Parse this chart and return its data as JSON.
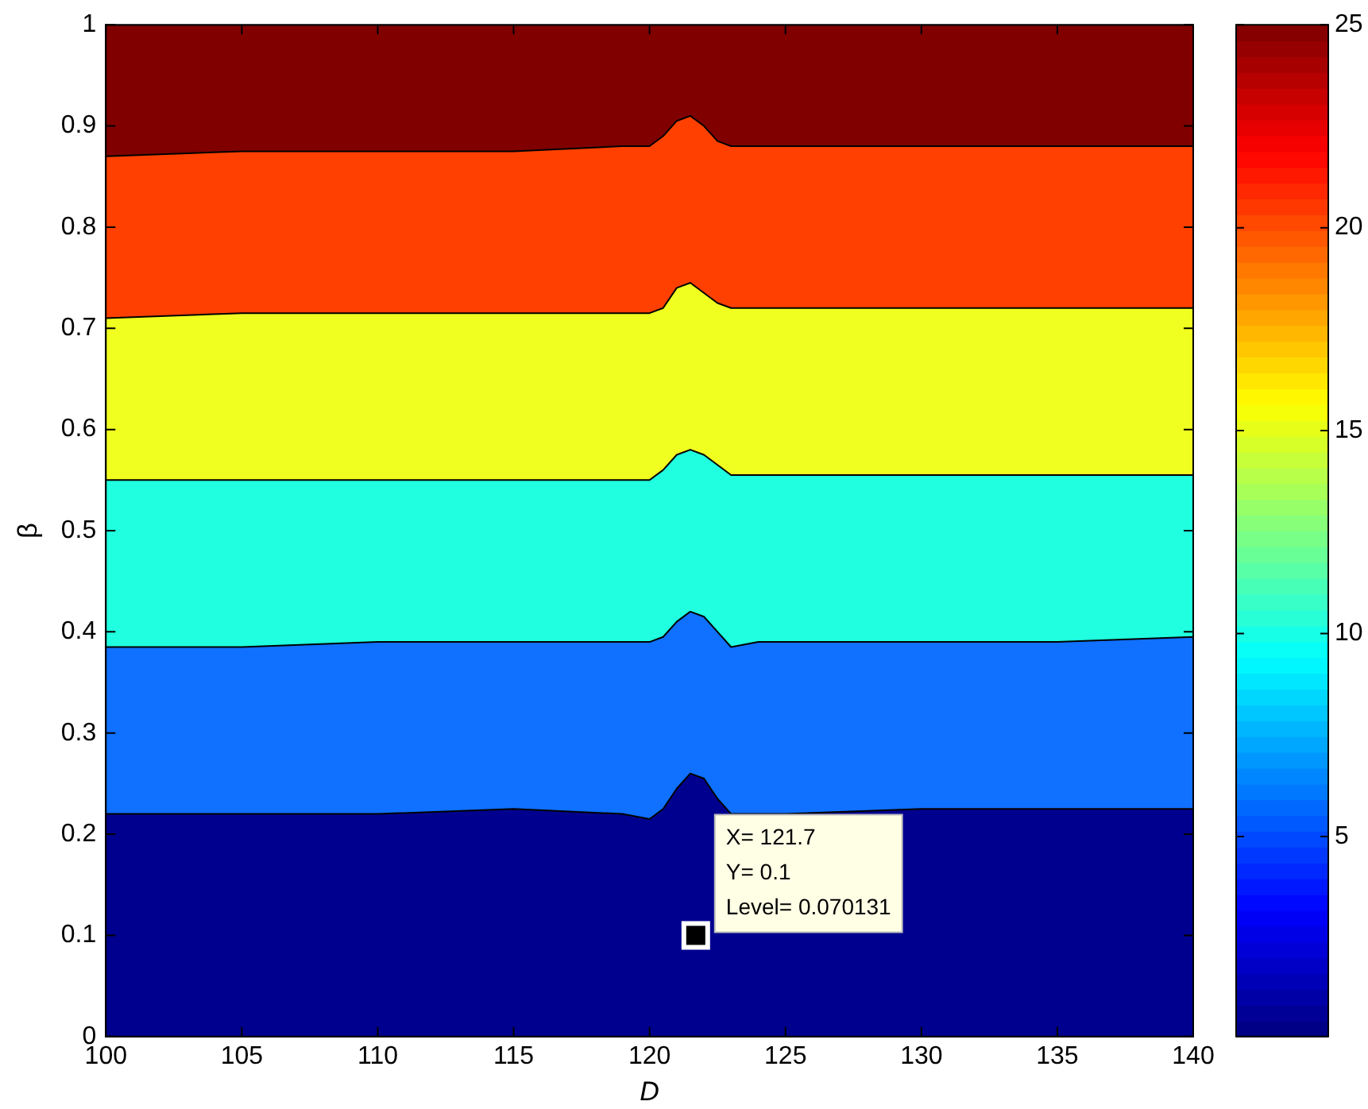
{
  "chart_data": {
    "type": "area",
    "xlabel": "D",
    "ylabel": "β",
    "x": [
      100,
      105,
      110,
      115,
      119,
      120,
      120.5,
      121,
      121.5,
      122,
      122.5,
      123,
      124,
      125,
      130,
      135,
      140
    ],
    "series": [
      {
        "color": "#00008f",
        "values": [
          0.22,
          0.22,
          0.22,
          0.225,
          0.22,
          0.215,
          0.225,
          0.245,
          0.26,
          0.255,
          0.235,
          0.22,
          0.22,
          0.22,
          0.225,
          0.225,
          0.225
        ]
      },
      {
        "color": "#1070ff",
        "values": [
          0.385,
          0.385,
          0.39,
          0.39,
          0.39,
          0.39,
          0.395,
          0.41,
          0.42,
          0.415,
          0.4,
          0.385,
          0.39,
          0.39,
          0.39,
          0.39,
          0.395
        ]
      },
      {
        "color": "#20ffdf",
        "values": [
          0.55,
          0.55,
          0.55,
          0.55,
          0.55,
          0.55,
          0.56,
          0.575,
          0.58,
          0.575,
          0.565,
          0.555,
          0.555,
          0.555,
          0.555,
          0.555,
          0.555
        ]
      },
      {
        "color": "#f0ff20",
        "values": [
          0.71,
          0.715,
          0.715,
          0.715,
          0.715,
          0.715,
          0.72,
          0.74,
          0.745,
          0.735,
          0.725,
          0.72,
          0.72,
          0.72,
          0.72,
          0.72,
          0.72
        ]
      },
      {
        "color": "#ff4000",
        "values": [
          0.87,
          0.875,
          0.875,
          0.875,
          0.88,
          0.88,
          0.89,
          0.905,
          0.91,
          0.9,
          0.885,
          0.88,
          0.88,
          0.88,
          0.88,
          0.88,
          0.88
        ]
      },
      {
        "color": "#800000",
        "values": [
          1,
          1,
          1,
          1,
          1,
          1,
          1,
          1,
          1,
          1,
          1,
          1,
          1,
          1,
          1,
          1,
          1
        ]
      }
    ],
    "xlim": [
      100,
      140
    ],
    "xticks": [
      100,
      105,
      110,
      115,
      120,
      125,
      130,
      135,
      140
    ],
    "ylim": [
      0,
      1
    ],
    "yticks": [
      0,
      0.1,
      0.2,
      0.3,
      0.4,
      0.5,
      0.6,
      0.7,
      0.8,
      0.9,
      1
    ],
    "clim": [
      0.07,
      25
    ],
    "cticks": [
      5,
      10,
      15,
      20,
      25
    ],
    "legend": false,
    "annotations": [
      {
        "text": "X= 121.7\nY= 0.1\nLevel= 0.070131",
        "x": 121.7,
        "y": 0.1
      }
    ]
  }
}
